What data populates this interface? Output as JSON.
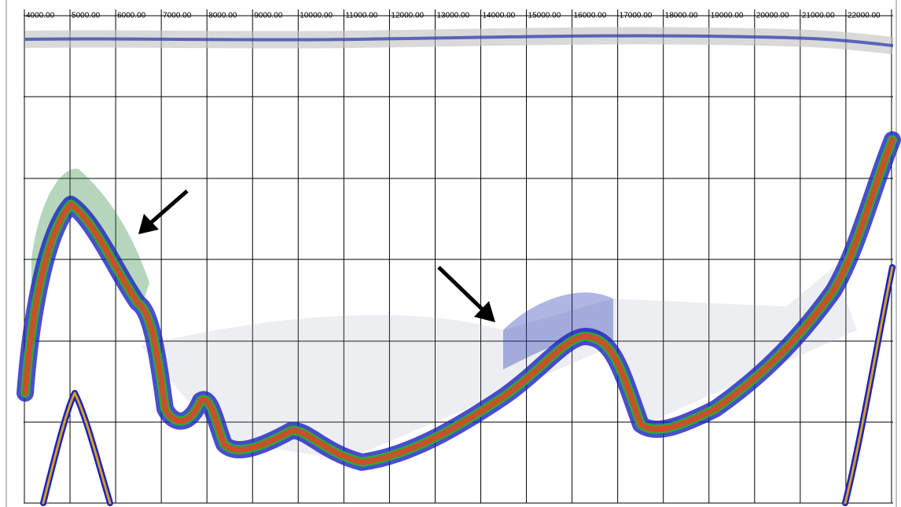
{
  "axis": {
    "labels": [
      "4000.00",
      "5000.00",
      "6000.00",
      "7000.00",
      "8000.00",
      "9000.00",
      "10000.00",
      "11000.00",
      "12000.00",
      "13000.00",
      "14000.00",
      "15000.00",
      "16000.00",
      "17000.00",
      "18000.00",
      "19000.00",
      "20000.00",
      "21000.00",
      "22000.00"
    ]
  }
}
